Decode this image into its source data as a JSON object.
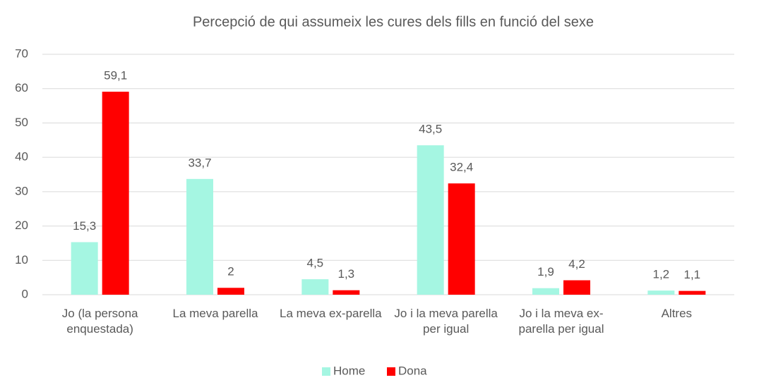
{
  "chart_data": {
    "type": "bar",
    "title": "Percepció de qui assumeix les cures dels fills en funció del sexe",
    "categories": [
      "Jo (la persona enquestada)",
      "La meva parella",
      "La meva ex-parella",
      "Jo i la meva parella per igual",
      "Jo i la meva ex-parella per igual",
      "Altres"
    ],
    "series": [
      {
        "name": "Home",
        "color": "#a5f6e2",
        "values": [
          15.3,
          33.7,
          4.5,
          43.5,
          1.9,
          1.2
        ],
        "value_labels": [
          "15,3",
          "33,7",
          "4,5",
          "43,5",
          "1,9",
          "1,2"
        ]
      },
      {
        "name": "Dona",
        "color": "#ff0000",
        "values": [
          59.1,
          2,
          1.3,
          32.4,
          4.2,
          1.1
        ],
        "value_labels": [
          "59,1",
          "2",
          "1,3",
          "32,4",
          "4,2",
          "1,1"
        ]
      }
    ],
    "ylim": [
      0,
      70
    ],
    "yticks": [
      0,
      10,
      20,
      30,
      40,
      50,
      60,
      70
    ],
    "grid": true,
    "legend": "bottom"
  }
}
